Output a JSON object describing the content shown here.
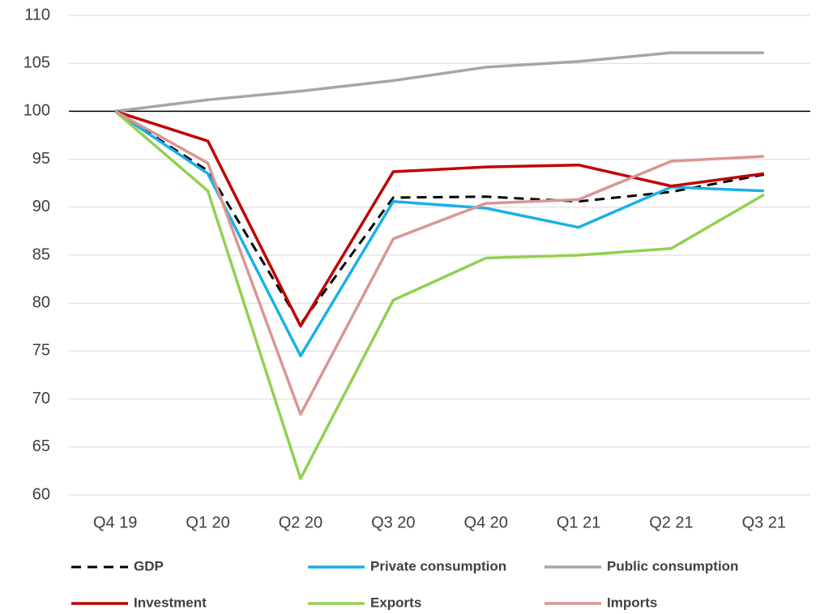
{
  "chart_data": {
    "type": "line",
    "categories": [
      "Q4 19",
      "Q1 20",
      "Q2 20",
      "Q3 20",
      "Q4 20",
      "Q1 21",
      "Q2 21",
      "Q3 21"
    ],
    "series": [
      {
        "name": "GDP",
        "color": "#000000",
        "dashed": true,
        "values": [
          100,
          93.8,
          77.8,
          91.0,
          91.1,
          90.6,
          91.6,
          93.4
        ]
      },
      {
        "name": "Private consumption",
        "color": "#1ab0e8",
        "values": [
          100,
          93.5,
          74.5,
          90.6,
          89.9,
          87.9,
          92.1,
          91.7
        ]
      },
      {
        "name": "Public consumption",
        "color": "#a6a6a6",
        "values": [
          100,
          101.2,
          102.1,
          103.2,
          104.6,
          105.2,
          106.1,
          106.1
        ]
      },
      {
        "name": "Investment",
        "color": "#c00000",
        "values": [
          100,
          96.9,
          77.6,
          93.7,
          94.2,
          94.4,
          92.2,
          93.5
        ]
      },
      {
        "name": "Exports",
        "color": "#92d050",
        "values": [
          100,
          91.7,
          61.7,
          80.3,
          84.7,
          85.0,
          85.7,
          91.3
        ]
      },
      {
        "name": "Imports",
        "color": "#d99694",
        "values": [
          100,
          94.6,
          68.4,
          86.7,
          90.4,
          90.8,
          94.8,
          95.3
        ]
      }
    ],
    "ylim": [
      60,
      110
    ],
    "yticks": [
      60,
      65,
      70,
      75,
      80,
      85,
      90,
      95,
      100,
      105,
      110
    ],
    "grid": true,
    "reference_line": 100,
    "legend": "bottom"
  }
}
